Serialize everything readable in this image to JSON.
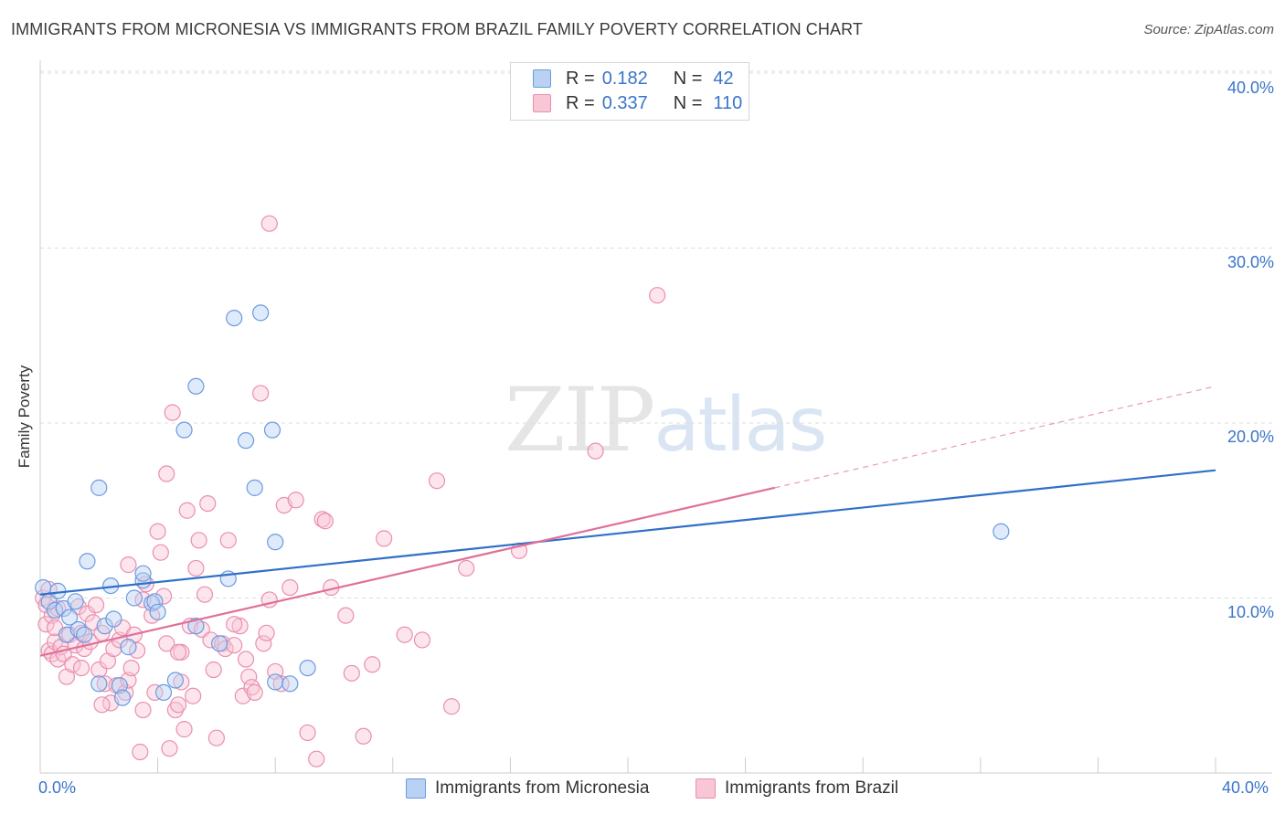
{
  "header": {
    "title": "IMMIGRANTS FROM MICRONESIA VS IMMIGRANTS FROM BRAZIL FAMILY POVERTY CORRELATION CHART",
    "source": "Source: ZipAtlas.com"
  },
  "watermark": {
    "zip": "ZIP",
    "atlas": "atlas"
  },
  "legend": {
    "r_label": "R =",
    "n_label": "N =",
    "micronesia": {
      "r": "0.182",
      "n": "42"
    },
    "brazil": {
      "r": "0.337",
      "n": "110"
    }
  },
  "colors": {
    "blue_fill": "#b9d1f3",
    "blue_stroke": "#6b9be0",
    "blue_line": "#3070c8",
    "pink_fill": "#f8c6d5",
    "pink_stroke": "#ea8fae",
    "pink_line": "#e0709a",
    "grid": "#dddddd",
    "tick_text": "#3a74c9"
  },
  "chart_data": {
    "type": "scatter",
    "title": "IMMIGRANTS FROM MICRONESIA VS IMMIGRANTS FROM BRAZIL FAMILY POVERTY CORRELATION CHART",
    "xlabel": "",
    "ylabel": "Family Poverty",
    "xlim": [
      0,
      40
    ],
    "ylim": [
      0,
      40
    ],
    "x_tick_labels": [
      "0.0%",
      "40.0%"
    ],
    "y_ticks": [
      10,
      20,
      30,
      40
    ],
    "y_tick_labels": [
      "10.0%",
      "20.0%",
      "30.0%",
      "40.0%"
    ],
    "grid": true,
    "legend_placement": "top-center",
    "series": [
      {
        "name": "Immigrants from Micronesia",
        "r": 0.182,
        "n": 42,
        "trend": {
          "x": [
            0,
            40
          ],
          "y": [
            10.2,
            17.3
          ]
        },
        "points": [
          [
            0.1,
            10.6
          ],
          [
            0.3,
            9.8
          ],
          [
            0.5,
            9.3
          ],
          [
            0.6,
            10.4
          ],
          [
            0.8,
            9.4
          ],
          [
            0.9,
            7.9
          ],
          [
            1.0,
            8.9
          ],
          [
            1.2,
            9.8
          ],
          [
            1.3,
            8.2
          ],
          [
            1.5,
            7.9
          ],
          [
            1.6,
            12.1
          ],
          [
            2.0,
            5.1
          ],
          [
            2.0,
            16.3
          ],
          [
            2.2,
            8.4
          ],
          [
            2.4,
            10.7
          ],
          [
            2.5,
            8.8
          ],
          [
            2.7,
            5.0
          ],
          [
            2.8,
            4.3
          ],
          [
            3.0,
            7.2
          ],
          [
            3.2,
            10.0
          ],
          [
            3.5,
            11.0
          ],
          [
            3.5,
            11.4
          ],
          [
            3.8,
            9.7
          ],
          [
            3.9,
            9.8
          ],
          [
            4.0,
            9.2
          ],
          [
            4.2,
            4.6
          ],
          [
            4.6,
            5.3
          ],
          [
            4.9,
            19.6
          ],
          [
            5.3,
            22.1
          ],
          [
            5.3,
            8.4
          ],
          [
            6.1,
            7.4
          ],
          [
            6.4,
            11.1
          ],
          [
            6.6,
            26.0
          ],
          [
            7.0,
            19.0
          ],
          [
            7.3,
            16.3
          ],
          [
            7.5,
            26.3
          ],
          [
            7.9,
            19.6
          ],
          [
            8.0,
            13.2
          ],
          [
            8.0,
            5.2
          ],
          [
            8.5,
            5.1
          ],
          [
            9.1,
            6.0
          ],
          [
            32.7,
            13.8
          ]
        ]
      },
      {
        "name": "Immigrants from Brazil",
        "r": 0.337,
        "n": 110,
        "trend": {
          "x": [
            0,
            25
          ],
          "y": [
            6.7,
            16.3
          ],
          "dashed_extension": {
            "x": [
              25,
              40
            ],
            "y": [
              16.3,
              22.1
            ]
          }
        },
        "points": [
          [
            0.1,
            10.0
          ],
          [
            0.2,
            8.5
          ],
          [
            0.2,
            9.6
          ],
          [
            0.3,
            7.0
          ],
          [
            0.3,
            10.5
          ],
          [
            0.4,
            6.8
          ],
          [
            0.4,
            9.0
          ],
          [
            0.5,
            7.5
          ],
          [
            0.5,
            8.3
          ],
          [
            0.6,
            6.5
          ],
          [
            0.6,
            9.4
          ],
          [
            0.7,
            7.2
          ],
          [
            0.8,
            6.8
          ],
          [
            0.9,
            5.5
          ],
          [
            1.0,
            7.9
          ],
          [
            1.1,
            6.2
          ],
          [
            1.2,
            7.3
          ],
          [
            1.3,
            9.5
          ],
          [
            1.4,
            8.0
          ],
          [
            1.5,
            7.1
          ],
          [
            1.6,
            9.1
          ],
          [
            1.7,
            7.5
          ],
          [
            1.8,
            8.6
          ],
          [
            1.9,
            9.6
          ],
          [
            2.0,
            5.9
          ],
          [
            2.1,
            8.0
          ],
          [
            2.2,
            5.1
          ],
          [
            2.3,
            6.4
          ],
          [
            2.4,
            4.0
          ],
          [
            2.5,
            7.1
          ],
          [
            2.6,
            5.0
          ],
          [
            2.7,
            7.6
          ],
          [
            2.8,
            8.3
          ],
          [
            2.9,
            4.6
          ],
          [
            3.0,
            5.3
          ],
          [
            3.0,
            11.9
          ],
          [
            3.1,
            6.0
          ],
          [
            3.2,
            7.9
          ],
          [
            3.3,
            7.0
          ],
          [
            3.4,
            1.2
          ],
          [
            3.5,
            3.6
          ],
          [
            3.5,
            9.9
          ],
          [
            3.6,
            10.8
          ],
          [
            3.8,
            9.0
          ],
          [
            3.9,
            4.6
          ],
          [
            4.0,
            13.8
          ],
          [
            4.1,
            12.6
          ],
          [
            4.2,
            10.1
          ],
          [
            4.3,
            7.4
          ],
          [
            4.3,
            17.1
          ],
          [
            4.4,
            1.4
          ],
          [
            4.5,
            20.6
          ],
          [
            4.6,
            3.6
          ],
          [
            4.7,
            3.9
          ],
          [
            4.8,
            5.2
          ],
          [
            4.8,
            6.9
          ],
          [
            4.9,
            2.5
          ],
          [
            5.0,
            15.0
          ],
          [
            5.1,
            8.4
          ],
          [
            5.3,
            11.7
          ],
          [
            5.4,
            13.3
          ],
          [
            5.5,
            8.2
          ],
          [
            5.6,
            10.2
          ],
          [
            5.7,
            15.4
          ],
          [
            5.8,
            7.6
          ],
          [
            5.9,
            5.9
          ],
          [
            6.0,
            2.0
          ],
          [
            6.2,
            7.4
          ],
          [
            6.3,
            7.1
          ],
          [
            6.4,
            13.3
          ],
          [
            6.6,
            7.3
          ],
          [
            6.8,
            8.4
          ],
          [
            6.9,
            4.4
          ],
          [
            7.0,
            6.5
          ],
          [
            7.1,
            5.5
          ],
          [
            7.2,
            4.9
          ],
          [
            7.3,
            4.6
          ],
          [
            7.5,
            21.7
          ],
          [
            7.6,
            7.4
          ],
          [
            7.7,
            8.0
          ],
          [
            7.8,
            9.9
          ],
          [
            8.0,
            5.8
          ],
          [
            8.2,
            5.1
          ],
          [
            8.3,
            15.3
          ],
          [
            8.5,
            10.6
          ],
          [
            8.7,
            15.6
          ],
          [
            9.1,
            2.3
          ],
          [
            9.4,
            0.8
          ],
          [
            9.6,
            14.5
          ],
          [
            9.7,
            14.4
          ],
          [
            9.9,
            10.6
          ],
          [
            10.4,
            9.0
          ],
          [
            10.6,
            5.7
          ],
          [
            11.0,
            2.1
          ],
          [
            11.3,
            6.2
          ],
          [
            11.7,
            13.4
          ],
          [
            12.4,
            7.9
          ],
          [
            13.0,
            7.6
          ],
          [
            13.5,
            16.7
          ],
          [
            14.0,
            3.8
          ],
          [
            14.5,
            11.7
          ],
          [
            16.3,
            12.7
          ],
          [
            18.9,
            18.4
          ],
          [
            21.0,
            27.3
          ],
          [
            7.8,
            31.4
          ],
          [
            2.1,
            3.9
          ],
          [
            4.7,
            6.9
          ],
          [
            6.6,
            8.5
          ],
          [
            1.4,
            6.0
          ],
          [
            5.2,
            4.4
          ]
        ]
      }
    ]
  },
  "bottom_legend": {
    "micronesia": "Immigrants from Micronesia",
    "brazil": "Immigrants from Brazil"
  }
}
